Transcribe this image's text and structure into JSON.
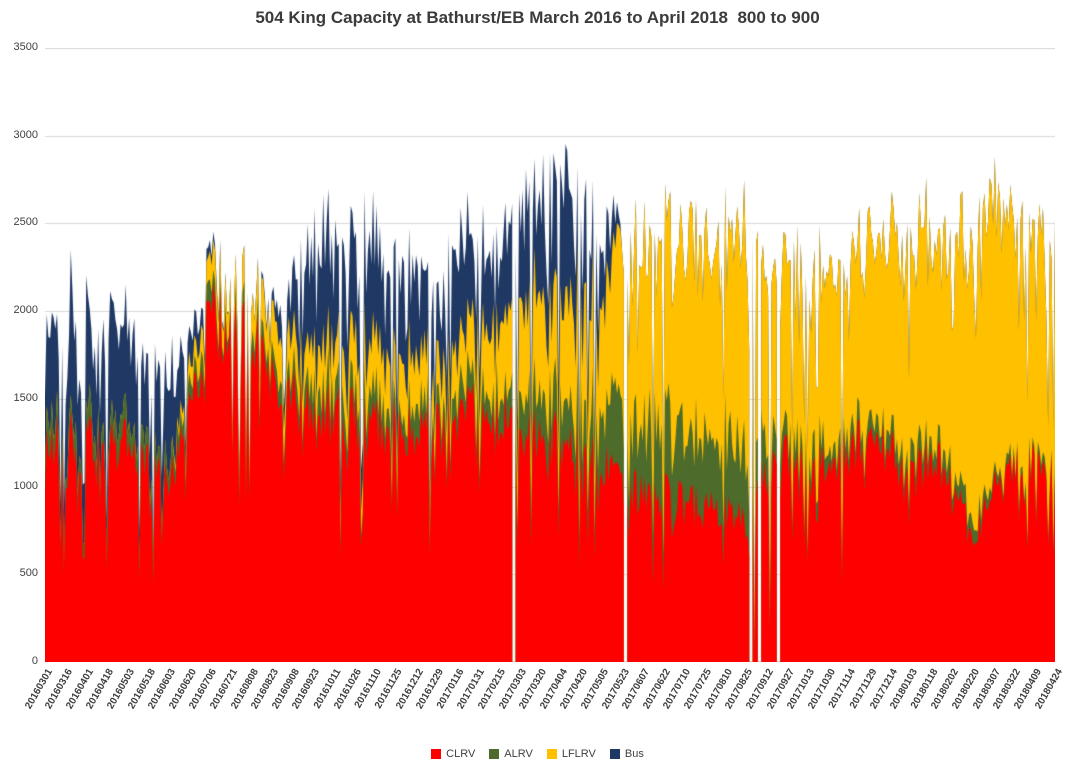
{
  "chart_data": {
    "type": "area",
    "stacked": true,
    "title": "504 King Capacity at Bathurst/EB March 2016 to April 2018  800 to 900",
    "xlabel": "",
    "ylabel": "",
    "ylim": [
      0,
      3500
    ],
    "y_ticks": [
      0,
      500,
      1000,
      1500,
      2000,
      2500,
      3000,
      3500
    ],
    "gridlines": "horizontal",
    "legend_position": "bottom",
    "categories": [
      "20160301",
      "20160316",
      "20160401",
      "20160418",
      "20160503",
      "20160518",
      "20160603",
      "20160620",
      "20160706",
      "20160721",
      "20160808",
      "20160823",
      "20160908",
      "20160923",
      "20161011",
      "20161026",
      "20161110",
      "20161125",
      "20161212",
      "20161229",
      "20170116",
      "20170131",
      "20170215",
      "20170303",
      "20170320",
      "20170404",
      "20170420",
      "20170505",
      "20170523",
      "20170607",
      "20170622",
      "20170710",
      "20170725",
      "20170810",
      "20170825",
      "20170912",
      "20170927",
      "20171013",
      "20171030",
      "20171114",
      "20171129",
      "20171214",
      "20180103",
      "20180118",
      "20180202",
      "20180220",
      "20180307",
      "20180322",
      "20180409",
      "20180424"
    ],
    "series": [
      {
        "name": "CLRV",
        "color": "#FF0000",
        "values": [
          1200,
          1300,
          1250,
          1200,
          1250,
          1100,
          1000,
          1450,
          1900,
          2000,
          1800,
          1700,
          1500,
          1450,
          1400,
          1400,
          1350,
          1400,
          1350,
          1300,
          1400,
          1450,
          1400,
          1300,
          1300,
          1250,
          1200,
          1150,
          1000,
          1000,
          950,
          900,
          900,
          850,
          800,
          1100,
          1150,
          1100,
          1150,
          1200,
          1250,
          1200,
          1100,
          1150,
          1100,
          650,
          1000,
          1100,
          1100,
          1100
        ]
      },
      {
        "name": "ALRV",
        "color": "#4D6B2A",
        "values": [
          150,
          100,
          150,
          100,
          150,
          100,
          100,
          100,
          100,
          50,
          100,
          100,
          100,
          150,
          150,
          150,
          150,
          100,
          150,
          100,
          150,
          150,
          150,
          200,
          250,
          250,
          300,
          350,
          400,
          400,
          450,
          450,
          400,
          450,
          450,
          200,
          150,
          150,
          100,
          100,
          100,
          100,
          100,
          100,
          100,
          100,
          50,
          50,
          50,
          50
        ]
      },
      {
        "name": "LFLRV",
        "color": "#FFC000",
        "values": [
          0,
          0,
          0,
          0,
          0,
          0,
          0,
          100,
          150,
          150,
          200,
          250,
          200,
          250,
          250,
          300,
          300,
          300,
          300,
          250,
          300,
          350,
          400,
          500,
          550,
          550,
          600,
          650,
          900,
          1000,
          1000,
          1100,
          1100,
          1100,
          1200,
          900,
          1000,
          900,
          1000,
          1000,
          1050,
          1100,
          1100,
          1200,
          1300,
          1500,
          1500,
          1400,
          1300,
          1250
        ]
      },
      {
        "name": "Bus",
        "color": "#1F3864",
        "values": [
          500,
          700,
          550,
          600,
          500,
          450,
          500,
          200,
          50,
          0,
          0,
          50,
          300,
          600,
          550,
          500,
          550,
          500,
          450,
          400,
          500,
          450,
          450,
          500,
          600,
          650,
          600,
          400,
          0,
          0,
          0,
          0,
          0,
          0,
          0,
          0,
          0,
          0,
          0,
          0,
          0,
          0,
          0,
          0,
          0,
          0,
          0,
          0,
          0,
          0
        ]
      }
    ],
    "gaps": [
      "20170227",
      "20170526",
      "20170829",
      "20170906",
      "20170921"
    ],
    "anomalies": [
      {
        "date": "20170901",
        "factor": 0.02
      },
      {
        "date": "20170915",
        "factor": 0.15
      }
    ]
  }
}
